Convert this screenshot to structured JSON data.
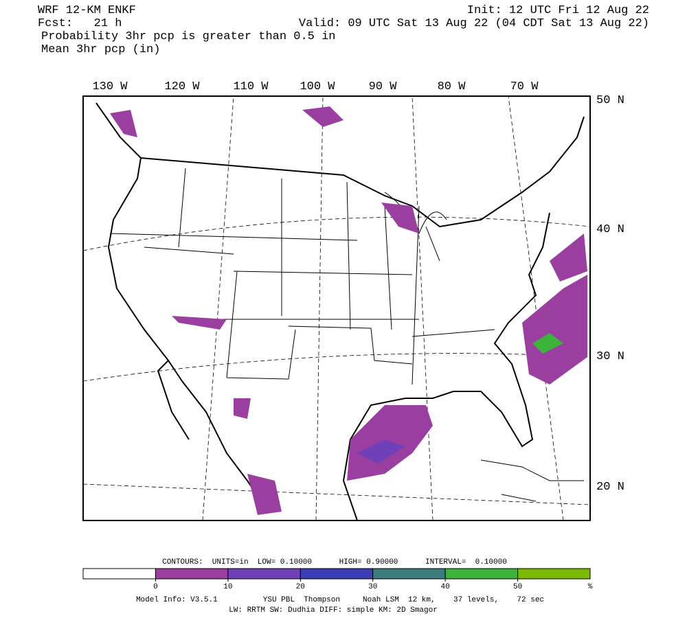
{
  "header": {
    "model": "WRF 12-KM ENKF",
    "forecast": "Fcst:   21 h",
    "init": "Init: 12 UTC Fri 12 Aug 22",
    "valid": "Valid: 09 UTC Sat 13 Aug 22 (04 CDT Sat 13 Aug 22)",
    "field1": "Probability 3hr pcp is greater than 0.5 in",
    "field2": "Mean 3hr pcp (in)"
  },
  "map": {
    "lon_labels": [
      "130 W",
      "120 W",
      "110 W",
      "100 W",
      "90 W",
      "80 W",
      "70 W"
    ],
    "lat_labels": [
      "50 N",
      "40 N",
      "30 N",
      "20 N"
    ]
  },
  "colorbar": {
    "contours": "CONTOURS:  UNITS=in  LOW= 0.10000      HIGH= 0.90000      INTERVAL=  0.10000",
    "colors": [
      "#ffffff",
      "#9a3fa0",
      "#7040b8",
      "#3c3cb4",
      "#3c7c7c",
      "#3cb43c",
      "#7cb800"
    ],
    "ticks": [
      0,
      10,
      20,
      30,
      40,
      50
    ],
    "unit": "%"
  },
  "footer": {
    "line1": "Model Info: V3.5.1          YSU PBL  Thompson     Noah LSM  12 km,    37 levels,    72 sec",
    "line2": "LW: RRTM SW: Dudhia  DIFF: simple KM: 2D Smagor"
  }
}
